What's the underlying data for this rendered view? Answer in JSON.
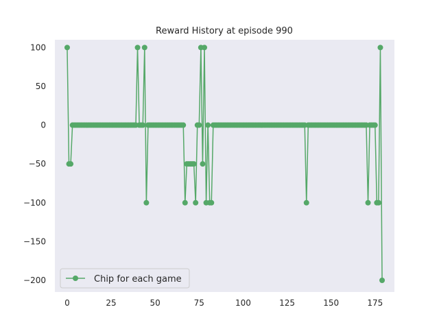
{
  "chart_data": {
    "type": "line",
    "title": "Reward History at episode 990",
    "xlabel": "",
    "ylabel": "",
    "xlim": [
      -7,
      186
    ],
    "ylim": [
      -215,
      110
    ],
    "xticks": [
      0,
      25,
      50,
      75,
      100,
      125,
      150,
      175
    ],
    "yticks": [
      100,
      50,
      0,
      -50,
      -100,
      -150,
      -200
    ],
    "grid": false,
    "legend_position": "lower-left",
    "background": "#eaeaf2",
    "series": [
      {
        "name": "Chip for each game",
        "color": "#55a868",
        "marker": "circle",
        "x": [
          0,
          1,
          2,
          3,
          4,
          5,
          6,
          7,
          8,
          9,
          10,
          11,
          12,
          13,
          14,
          15,
          16,
          17,
          18,
          19,
          20,
          21,
          22,
          23,
          24,
          25,
          26,
          27,
          28,
          29,
          30,
          31,
          32,
          33,
          34,
          35,
          36,
          37,
          38,
          39,
          40,
          41,
          42,
          43,
          44,
          45,
          46,
          47,
          48,
          49,
          50,
          51,
          52,
          53,
          54,
          55,
          56,
          57,
          58,
          59,
          60,
          61,
          62,
          63,
          64,
          65,
          66,
          67,
          68,
          69,
          70,
          71,
          72,
          73,
          74,
          75,
          76,
          77,
          78,
          79,
          80,
          81,
          82,
          83,
          84,
          85,
          86,
          87,
          88,
          89,
          90,
          91,
          92,
          93,
          94,
          95,
          96,
          97,
          98,
          99,
          100,
          101,
          102,
          103,
          104,
          105,
          106,
          107,
          108,
          109,
          110,
          111,
          112,
          113,
          114,
          115,
          116,
          117,
          118,
          119,
          120,
          121,
          122,
          123,
          124,
          125,
          126,
          127,
          128,
          129,
          130,
          131,
          132,
          133,
          134,
          135,
          136,
          137,
          138,
          139,
          140,
          141,
          142,
          143,
          144,
          145,
          146,
          147,
          148,
          149,
          150,
          151,
          152,
          153,
          154,
          155,
          156,
          157,
          158,
          159,
          160,
          161,
          162,
          163,
          164,
          165,
          166,
          167,
          168,
          169,
          170,
          171,
          172,
          173,
          174,
          175,
          176,
          177,
          178,
          179
        ],
        "values": [
          100,
          -50,
          -50,
          0,
          0,
          0,
          0,
          0,
          0,
          0,
          0,
          0,
          0,
          0,
          0,
          0,
          0,
          0,
          0,
          0,
          0,
          0,
          0,
          0,
          0,
          0,
          0,
          0,
          0,
          0,
          0,
          0,
          0,
          0,
          0,
          0,
          0,
          0,
          0,
          0,
          100,
          0,
          0,
          0,
          100,
          -100,
          0,
          0,
          0,
          0,
          0,
          0,
          0,
          0,
          0,
          0,
          0,
          0,
          0,
          0,
          0,
          0,
          0,
          0,
          0,
          0,
          0,
          -100,
          -50,
          -50,
          -50,
          -50,
          -50,
          -100,
          0,
          0,
          100,
          -50,
          100,
          -100,
          0,
          -100,
          -100,
          0,
          0,
          0,
          0,
          0,
          0,
          0,
          0,
          0,
          0,
          0,
          0,
          0,
          0,
          0,
          0,
          0,
          0,
          0,
          0,
          0,
          0,
          0,
          0,
          0,
          0,
          0,
          0,
          0,
          0,
          0,
          0,
          0,
          0,
          0,
          0,
          0,
          0,
          0,
          0,
          0,
          0,
          0,
          0,
          0,
          0,
          0,
          0,
          0,
          0,
          0,
          0,
          0,
          -100,
          0,
          0,
          0,
          0,
          0,
          0,
          0,
          0,
          0,
          0,
          0,
          0,
          0,
          0,
          0,
          0,
          0,
          0,
          0,
          0,
          0,
          0,
          0,
          0,
          0,
          0,
          0,
          0,
          0,
          0,
          0,
          0,
          0,
          0,
          -100,
          0,
          0,
          0,
          0,
          -100,
          -100,
          100,
          -200
        ]
      }
    ]
  }
}
